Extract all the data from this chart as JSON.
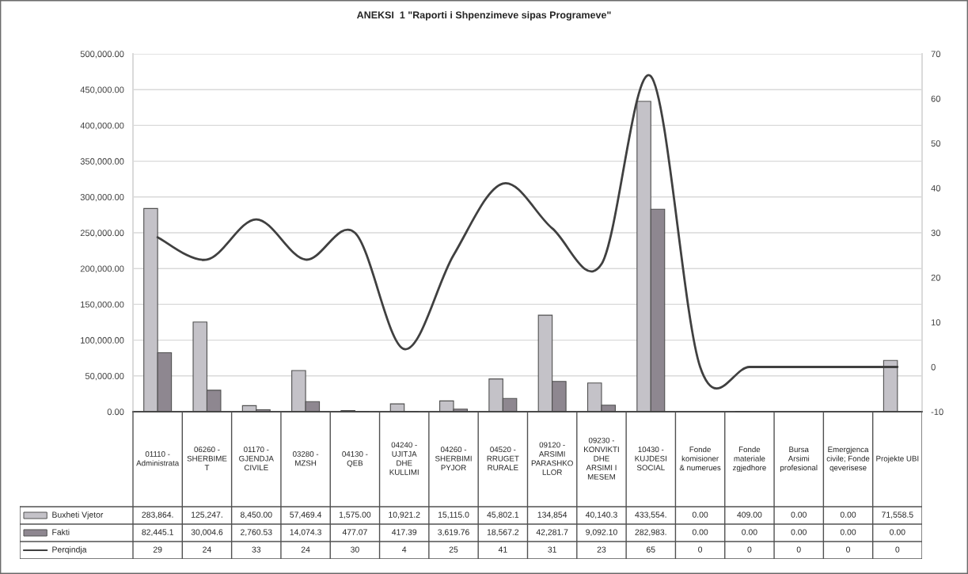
{
  "chart_data": {
    "type": "bar",
    "title": "ANEKSI  1 \"Raporti i Shpenzimeve sipas Programeve\"",
    "categories": [
      "01110 - Administrata",
      "06260 - SHERBIMET",
      "01170 - GJENDJA CIVILE",
      "03280 - MZSH",
      "04130 - QEB",
      "04240 - UJITJA DHE KULLIMI",
      "04260 - SHERBIMI PYJOR",
      "04520 - RRUGET RURALE",
      "09120 - ARSIMI PARASHKOLLOR",
      "09230 - KONVIKTI DHE ARSIMI I MESEM",
      "10430 - KUJDESI SOCIAL",
      "Fonde komisioner & numerues",
      "Fonde materiale zgjedhore",
      "Bursa Arsimi profesional",
      "Emergjenca civile; Fonde qeverisese",
      "Projekte UBI"
    ],
    "series": [
      {
        "name": "Buxheti Vjetor",
        "color": "#c4c2c8",
        "values": [
          283864,
          125247,
          8450,
          57469.4,
          1575,
          10921.2,
          15115,
          45802.1,
          134854,
          40140.3,
          433554,
          0,
          409,
          0,
          0,
          71558.5
        ],
        "value_labels": [
          "283,864.",
          "125,247.",
          "8,450.00",
          "57,469.4",
          "1,575.00",
          "10,921.2",
          "15,115.0",
          "45,802.1",
          "134,854",
          "40,140.3",
          "433,554.",
          "0.00",
          "409.00",
          "0.00",
          "0.00",
          "71,558.5"
        ]
      },
      {
        "name": "Fakti",
        "color": "#8e8790",
        "values": [
          82445.1,
          30004.6,
          2760.53,
          14074.3,
          477.07,
          417.39,
          3619.76,
          18567.2,
          42281.7,
          9092.1,
          282983,
          0,
          0,
          0,
          0,
          0
        ],
        "value_labels": [
          "82,445.1",
          "30,004.6",
          "2,760.53",
          "14,074.3",
          "477.07",
          "417.39",
          "3,619.76",
          "18,567.2",
          "42,281.7",
          "9,092.10",
          "282,983.",
          "0.00",
          "0.00",
          "0.00",
          "0.00",
          "0.00"
        ]
      },
      {
        "name": "Perqindja",
        "type": "line",
        "axis": "y2",
        "color": "#404040",
        "values": [
          29,
          24,
          33,
          24,
          30,
          4,
          25,
          41,
          31,
          23,
          65,
          0,
          0,
          0,
          0,
          0
        ],
        "value_labels": [
          "29",
          "24",
          "33",
          "24",
          "30",
          "4",
          "25",
          "41",
          "31",
          "23",
          "65",
          "0",
          "0",
          "0",
          "0",
          "0"
        ]
      }
    ],
    "ylim": [
      0,
      500000
    ],
    "yticks": [
      {
        "value": 0,
        "label": "0.00"
      },
      {
        "value": 50000,
        "label": "50,000.00"
      },
      {
        "value": 100000,
        "label": "100,000.00"
      },
      {
        "value": 150000,
        "label": "150,000.00"
      },
      {
        "value": 200000,
        "label": "200,000.00"
      },
      {
        "value": 250000,
        "label": "250,000.00"
      },
      {
        "value": 300000,
        "label": "300,000.00"
      },
      {
        "value": 350000,
        "label": "350,000.00"
      },
      {
        "value": 400000,
        "label": "400,000.00"
      },
      {
        "value": 450000,
        "label": "450,000.00"
      },
      {
        "value": 500000,
        "label": "500,000.00"
      }
    ],
    "y2lim": [
      -10,
      70
    ],
    "y2ticks": [
      -10,
      0,
      10,
      20,
      30,
      40,
      50,
      60,
      70
    ],
    "grid": "y",
    "legend": "bottom left"
  }
}
